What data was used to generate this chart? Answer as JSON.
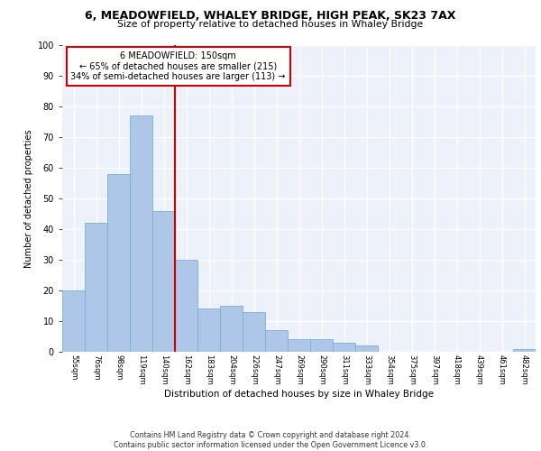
{
  "title1": "6, MEADOWFIELD, WHALEY BRIDGE, HIGH PEAK, SK23 7AX",
  "title2": "Size of property relative to detached houses in Whaley Bridge",
  "xlabel": "Distribution of detached houses by size in Whaley Bridge",
  "ylabel": "Number of detached properties",
  "categories": [
    "55sqm",
    "76sqm",
    "98sqm",
    "119sqm",
    "140sqm",
    "162sqm",
    "183sqm",
    "204sqm",
    "226sqm",
    "247sqm",
    "269sqm",
    "290sqm",
    "311sqm",
    "333sqm",
    "354sqm",
    "375sqm",
    "397sqm",
    "418sqm",
    "439sqm",
    "461sqm",
    "482sqm"
  ],
  "values": [
    20,
    42,
    58,
    77,
    46,
    30,
    14,
    15,
    13,
    7,
    4,
    4,
    3,
    2,
    0,
    0,
    0,
    0,
    0,
    0,
    1
  ],
  "bar_color": "#aec6e8",
  "bar_edge_color": "#7bafd4",
  "vline_x": 4.5,
  "vline_color": "#cc0000",
  "annotation_text": "6 MEADOWFIELD: 150sqm\n← 65% of detached houses are smaller (215)\n34% of semi-detached houses are larger (113) →",
  "annotation_box_color": "#ffffff",
  "annotation_box_edge": "#cc0000",
  "ylim": [
    0,
    100
  ],
  "yticks": [
    0,
    10,
    20,
    30,
    40,
    50,
    60,
    70,
    80,
    90,
    100
  ],
  "footer": "Contains HM Land Registry data © Crown copyright and database right 2024.\nContains public sector information licensed under the Open Government Licence v3.0.",
  "bg_color": "#edf1f9"
}
